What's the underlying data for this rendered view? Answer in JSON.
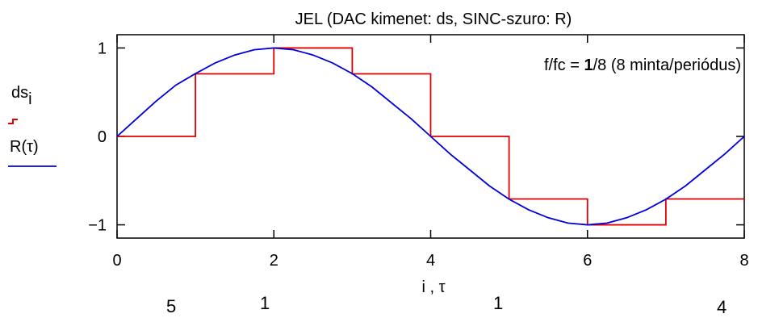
{
  "chart_data": {
    "type": "line",
    "title": "JEL (DAC kimenet: ds,  SINC-szuro: R)",
    "xlabel": "i , τ",
    "xlim": [
      0,
      8
    ],
    "ylim": [
      -1.15,
      1.15
    ],
    "x_ticks": [
      0,
      2,
      4,
      6,
      8
    ],
    "y_ticks": [
      1,
      0,
      -1
    ],
    "x_tick_labels": [
      "0",
      "2",
      "4",
      "6",
      "8"
    ],
    "y_tick_labels": [
      "1",
      "0",
      "−1"
    ],
    "grid": false,
    "annotation": {
      "pre": "f/fc = ",
      "bold": "1",
      "post": "/8 (8 minta/periódus)"
    },
    "legend": {
      "placement": "left",
      "entries": [
        {
          "label_main": "ds",
          "label_sub": "i",
          "color": "#e00000"
        },
        {
          "label_main": "R(τ)",
          "label_sub": "",
          "color": "#0000dd"
        }
      ]
    },
    "series": [
      {
        "name": "ds",
        "style": "step",
        "color": "#e00000",
        "x": [
          0,
          1,
          2,
          3,
          4,
          5,
          6,
          7,
          8
        ],
        "values": [
          0,
          0.707,
          1,
          0.707,
          0,
          -0.707,
          -1,
          -0.707,
          -0.707
        ]
      },
      {
        "name": "R(τ)",
        "style": "line",
        "color": "#0000dd",
        "x": [
          0,
          0.25,
          0.5,
          0.75,
          1,
          1.25,
          1.5,
          1.75,
          2,
          2.25,
          2.5,
          2.75,
          3,
          3.25,
          3.5,
          3.75,
          4,
          4.25,
          4.5,
          4.75,
          5,
          5.25,
          5.5,
          5.75,
          6,
          6.25,
          6.5,
          6.75,
          7,
          7.25,
          7.5,
          7.75,
          8
        ],
        "values": [
          0,
          0.2,
          0.4,
          0.58,
          0.71,
          0.83,
          0.92,
          0.98,
          1.0,
          0.98,
          0.92,
          0.83,
          0.71,
          0.56,
          0.38,
          0.2,
          0,
          -0.2,
          -0.38,
          -0.56,
          -0.71,
          -0.83,
          -0.92,
          -0.98,
          -1.0,
          -0.98,
          -0.92,
          -0.83,
          -0.71,
          -0.56,
          -0.38,
          -0.2,
          0
        ]
      }
    ]
  },
  "bottom_partial": [
    "5",
    "1",
    "1",
    "4"
  ]
}
